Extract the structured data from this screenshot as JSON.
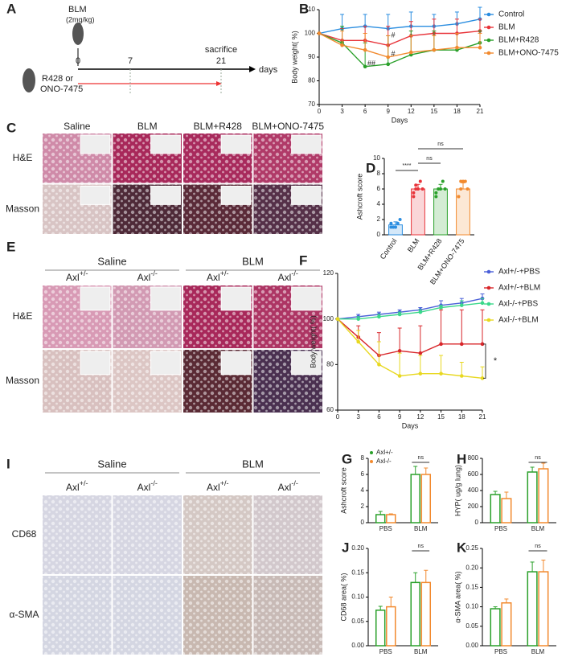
{
  "panel_labels": [
    "A",
    "B",
    "C",
    "D",
    "E",
    "F",
    "G",
    "H",
    "I",
    "J",
    "K"
  ],
  "schematic": {
    "drug": "BLM",
    "dose": "(2mg/kg)",
    "time_points": [
      "0",
      "7",
      "21"
    ],
    "endpoint": "sacrifice",
    "time_unit": "days",
    "treatment": [
      "R428 or",
      "ONO-7475"
    ]
  },
  "histology_c": {
    "columns": [
      "Saline",
      "BLM",
      "BLM+R428",
      "BLM+ONO-7475"
    ],
    "rows": [
      "H&E",
      "Masson"
    ]
  },
  "histology_e": {
    "groups": [
      "Saline",
      "BLM"
    ],
    "columns": [
      {
        "gene": "Axl",
        "genotype": "+/-"
      },
      {
        "gene": "Axl",
        "genotype": "-/-"
      },
      {
        "gene": "Axl",
        "genotype": "+/-"
      },
      {
        "gene": "Axl",
        "genotype": "-/-"
      }
    ],
    "rows": [
      "H&E",
      "Masson"
    ]
  },
  "histology_i": {
    "groups": [
      "Saline",
      "BLM"
    ],
    "columns": [
      {
        "gene": "Axl",
        "genotype": "+/-"
      },
      {
        "gene": "Axl",
        "genotype": "-/-"
      },
      {
        "gene": "Axl",
        "genotype": "+/-"
      },
      {
        "gene": "Axl",
        "genotype": "-/-"
      }
    ],
    "rows": [
      "CD68",
      "α-SMA"
    ]
  },
  "chart_data": [
    {
      "type": "line",
      "x_label": "Days",
      "y_label": "Body weight( %)",
      "x": [
        0,
        3,
        6,
        9,
        12,
        15,
        18,
        21
      ],
      "xlim": [
        0,
        21
      ],
      "xticks": [
        0,
        3,
        6,
        9,
        12,
        15,
        18,
        21
      ],
      "ylim": [
        70,
        110
      ],
      "yticks": [
        70,
        80,
        90,
        100,
        110
      ],
      "legend": "right",
      "series": [
        {
          "name": "Control",
          "color": "#2a8de0",
          "values": [
            100,
            102,
            103,
            102,
            103,
            103,
            104,
            106
          ],
          "errors": [
            0,
            6,
            5,
            6,
            6,
            5,
            5,
            5
          ]
        },
        {
          "name": "BLM",
          "color": "#e8343a",
          "values": [
            100,
            97,
            97,
            95,
            99,
            100,
            100,
            101
          ],
          "errors": [
            0,
            5,
            6,
            8,
            6,
            6,
            6,
            5
          ]
        },
        {
          "name": "BLM+R428",
          "color": "#2aa02a",
          "values": [
            100,
            96,
            86,
            87,
            91,
            93,
            93,
            96
          ],
          "errors": [
            0,
            7,
            10,
            12,
            10,
            8,
            7,
            5
          ]
        },
        {
          "name": "BLM+ONO-7475",
          "color": "#f28a2e",
          "values": [
            100,
            95,
            93,
            90,
            92,
            93,
            94,
            94
          ],
          "errors": [
            0,
            6,
            7,
            9,
            7,
            6,
            6,
            6
          ]
        }
      ],
      "annotations": [
        "#",
        "##",
        "#"
      ]
    },
    {
      "type": "bar",
      "y_label": "Ashcroft score",
      "categories": [
        "Control",
        "BLM",
        "BLM+R428",
        "BLM+ONO-7475"
      ],
      "values": [
        1.3,
        6,
        6,
        6
      ],
      "errors": [
        0.4,
        0.6,
        0.6,
        0.8
      ],
      "colors": [
        "#2a8de0",
        "#e8343a",
        "#2aa02a",
        "#f28a2e"
      ],
      "points": [
        [
          1,
          1,
          1,
          1.5,
          2,
          1.5
        ],
        [
          5,
          6,
          6,
          7,
          6,
          5.5,
          6.5
        ],
        [
          5,
          6,
          6,
          7,
          6,
          5.5
        ],
        [
          5,
          6,
          7,
          7,
          6,
          5,
          7
        ]
      ],
      "ylim": [
        0,
        10
      ],
      "yticks": [
        0,
        2,
        4,
        6,
        8,
        10
      ],
      "annotations": [
        "****",
        "ns",
        "ns"
      ]
    },
    {
      "type": "line",
      "x_label": "Days",
      "y_label": "Body weight( %)",
      "x": [
        0,
        3,
        6,
        9,
        12,
        15,
        18,
        21
      ],
      "xlim": [
        0,
        21
      ],
      "xticks": [
        0,
        3,
        6,
        9,
        12,
        15,
        18,
        21
      ],
      "ylim": [
        60,
        120
      ],
      "yticks": [
        60,
        80,
        100,
        120
      ],
      "legend": "right",
      "series": [
        {
          "name": "Axl+/-+PBS",
          "color": "#4a5fd8",
          "values": [
            100,
            101,
            102,
            103,
            104,
            106,
            107,
            109
          ],
          "errors": [
            0,
            1,
            1,
            1,
            1,
            2,
            2,
            2
          ]
        },
        {
          "name": "Axl+/-+BLM",
          "color": "#d8262a",
          "values": [
            100,
            92,
            84,
            86,
            85,
            89,
            89,
            89
          ],
          "errors": [
            0,
            5,
            10,
            10,
            12,
            15,
            15,
            15
          ]
        },
        {
          "name": "Axl-/-+PBS",
          "color": "#3ad88a",
          "values": [
            100,
            100,
            101,
            102,
            103,
            105,
            106,
            107
          ],
          "errors": [
            0,
            1,
            1,
            1,
            1,
            1,
            2,
            2
          ]
        },
        {
          "name": "Axl-/-+BLM",
          "color": "#e8d820",
          "values": [
            100,
            90,
            80,
            75,
            76,
            76,
            75,
            74
          ],
          "errors": [
            0,
            5,
            10,
            10,
            8,
            8,
            6,
            5
          ]
        }
      ],
      "annotations": [
        "*"
      ]
    },
    {
      "type": "grouped_bar",
      "y_label": "Ashcroft score",
      "categories": [
        "PBS",
        "BLM"
      ],
      "ylim": [
        0,
        8
      ],
      "yticks": [
        0,
        2,
        4,
        6,
        8
      ],
      "legend": "top-left",
      "series": [
        {
          "name": "Axl+/-",
          "color": "#2aa02a",
          "values": [
            1,
            6
          ],
          "errors": [
            0.4,
            1
          ]
        },
        {
          "name": "Axl-/-",
          "color": "#f28a2e",
          "values": [
            1,
            6
          ],
          "errors": [
            0.1,
            0.8
          ]
        }
      ],
      "annotations": [
        "ns"
      ]
    },
    {
      "type": "grouped_bar",
      "y_label": "HYP( ug/g lung)",
      "categories": [
        "PBS",
        "BLM"
      ],
      "ylim": [
        0,
        800
      ],
      "yticks": [
        0,
        200,
        400,
        600,
        800
      ],
      "series": [
        {
          "color": "#2aa02a",
          "values": [
            350,
            630
          ],
          "errors": [
            40,
            60
          ]
        },
        {
          "color": "#f28a2e",
          "values": [
            300,
            670
          ],
          "errors": [
            80,
            70
          ]
        }
      ],
      "annotations": [
        "ns"
      ]
    },
    {
      "type": "grouped_bar",
      "y_label": "CD68 area( %)",
      "categories": [
        "PBS",
        "BLM"
      ],
      "ylim": [
        0,
        0.2
      ],
      "yticks": [
        {
          "value": 0,
          "label": "0.00"
        },
        {
          "value": 0.05,
          "label": "0.05"
        },
        {
          "value": 0.1,
          "label": "0.10"
        },
        {
          "value": 0.15,
          "label": "0.15"
        },
        {
          "value": 0.2,
          "label": "0.20"
        }
      ],
      "series": [
        {
          "color": "#2aa02a",
          "values": [
            0.073,
            0.13
          ],
          "errors": [
            0.008,
            0.02
          ]
        },
        {
          "color": "#f28a2e",
          "values": [
            0.08,
            0.13
          ],
          "errors": [
            0.02,
            0.025
          ]
        }
      ],
      "annotations": [
        "ns"
      ]
    },
    {
      "type": "grouped_bar",
      "y_label": "α-SMA area( %)",
      "categories": [
        "PBS",
        "BLM"
      ],
      "ylim": [
        0,
        0.25
      ],
      "yticks": [
        {
          "value": 0,
          "label": "0.00"
        },
        {
          "value": 0.05,
          "label": "0.05"
        },
        {
          "value": 0.1,
          "label": "0.10"
        },
        {
          "value": 0.15,
          "label": "0.15"
        },
        {
          "value": 0.2,
          "label": "0.20"
        },
        {
          "value": 0.25,
          "label": "0.25"
        }
      ],
      "series": [
        {
          "color": "#2aa02a",
          "values": [
            0.095,
            0.19
          ],
          "errors": [
            0.005,
            0.025
          ]
        },
        {
          "color": "#f28a2e",
          "values": [
            0.11,
            0.19
          ],
          "errors": [
            0.01,
            0.03
          ]
        }
      ],
      "annotations": [
        "ns"
      ]
    }
  ]
}
